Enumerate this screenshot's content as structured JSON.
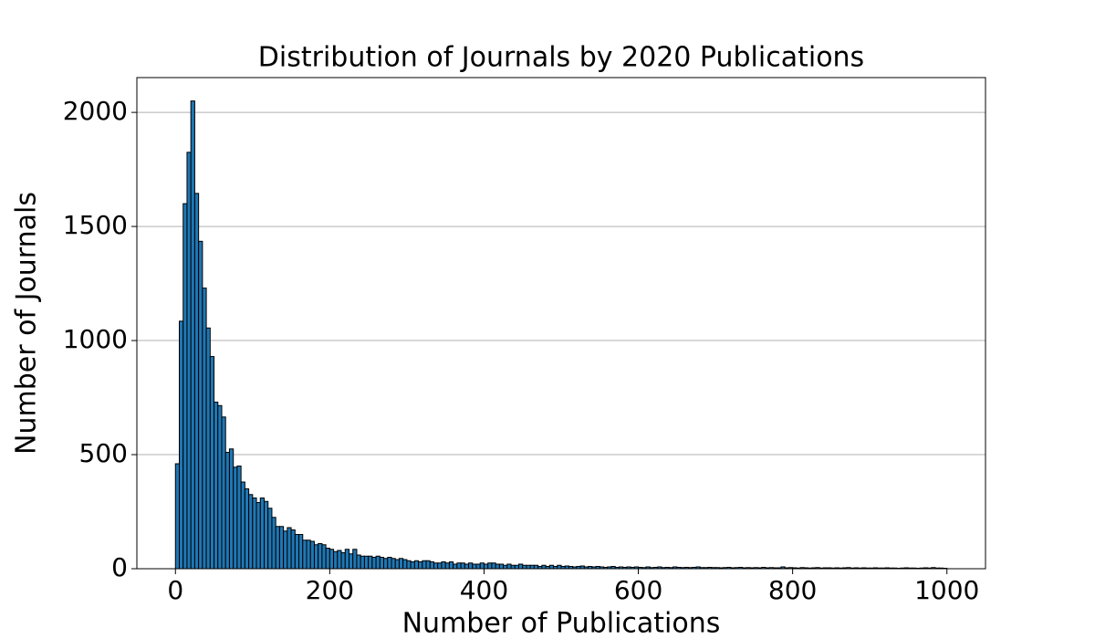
{
  "chart_data": {
    "type": "histogram",
    "title": "Distribution of Journals by 2020 Publications",
    "x_label": "Number of Publications",
    "y_label": "Number of Journals",
    "color": "#1f77b4",
    "edgecolor": "#000000",
    "grid": true,
    "xlim": [
      -50,
      1050
    ],
    "ylim": [
      0,
      2152.5
    ],
    "xticks": [
      0,
      200,
      400,
      600,
      800,
      1000
    ],
    "yticks": [
      0,
      500,
      1000,
      1500,
      2000
    ],
    "bins": [
      0,
      5,
      10,
      15,
      20,
      25,
      30,
      35,
      40,
      45,
      50,
      55,
      60,
      65,
      70,
      75,
      80,
      85,
      90,
      95,
      100,
      105,
      110,
      115,
      120,
      125,
      130,
      135,
      140,
      145,
      150,
      155,
      160,
      165,
      170,
      175,
      180,
      185,
      190,
      195,
      200,
      205,
      210,
      215,
      220,
      225,
      230,
      235,
      240,
      245,
      250,
      255,
      260,
      265,
      270,
      275,
      280,
      285,
      290,
      295,
      300,
      305,
      310,
      315,
      320,
      325,
      330,
      335,
      340,
      345,
      350,
      355,
      360,
      365,
      370,
      375,
      380,
      385,
      390,
      395,
      400,
      405,
      410,
      415,
      420,
      425,
      430,
      435,
      440,
      445,
      450,
      455,
      460,
      465,
      470,
      475,
      480,
      485,
      490,
      495,
      500,
      505,
      510,
      515,
      520,
      525,
      530,
      535,
      540,
      545,
      550,
      555,
      560,
      565,
      570,
      575,
      580,
      585,
      590,
      595,
      600,
      605,
      610,
      615,
      620,
      625,
      630,
      635,
      640,
      645,
      650,
      655,
      660,
      665,
      670,
      675,
      680,
      685,
      690,
      695,
      700,
      705,
      710,
      715,
      720,
      725,
      730,
      735,
      740,
      745,
      750,
      755,
      760,
      765,
      770,
      775,
      780,
      785,
      790,
      795,
      800,
      805,
      810,
      815,
      820,
      825,
      830,
      835,
      840,
      845,
      850,
      855,
      860,
      865,
      870,
      875,
      880,
      885,
      890,
      895,
      900,
      905,
      910,
      915,
      920,
      925,
      930,
      935,
      940,
      945,
      950,
      955,
      960,
      965,
      970,
      975,
      980,
      985,
      990,
      995,
      1000
    ],
    "counts": [
      460,
      1085,
      1600,
      1825,
      2050,
      1645,
      1435,
      1230,
      1055,
      930,
      730,
      715,
      665,
      510,
      525,
      445,
      450,
      380,
      350,
      325,
      310,
      290,
      310,
      295,
      265,
      225,
      185,
      185,
      165,
      180,
      170,
      150,
      150,
      125,
      125,
      120,
      105,
      110,
      105,
      90,
      85,
      75,
      80,
      70,
      85,
      65,
      85,
      60,
      55,
      55,
      55,
      50,
      55,
      50,
      45,
      50,
      45,
      40,
      45,
      40,
      35,
      30,
      35,
      30,
      35,
      35,
      30,
      25,
      25,
      30,
      25,
      30,
      20,
      25,
      25,
      20,
      25,
      20,
      20,
      25,
      20,
      25,
      25,
      20,
      20,
      15,
      20,
      15,
      15,
      20,
      15,
      15,
      15,
      15,
      10,
      15,
      10,
      15,
      10,
      15,
      10,
      12,
      10,
      8,
      10,
      12,
      8,
      10,
      8,
      10,
      8,
      6,
      8,
      10,
      6,
      8,
      6,
      8,
      6,
      8,
      6,
      5,
      8,
      5,
      6,
      8,
      5,
      6,
      5,
      8,
      6,
      5,
      6,
      5,
      6,
      8,
      5,
      5,
      6,
      5,
      5,
      4,
      5,
      6,
      4,
      5,
      6,
      4,
      5,
      4,
      5,
      4,
      6,
      4,
      5,
      4,
      4,
      8,
      4,
      5,
      4,
      3,
      5,
      4,
      3,
      4,
      5,
      3,
      4,
      4,
      3,
      4,
      3,
      4,
      5,
      3,
      4,
      3,
      4,
      3,
      3,
      4,
      3,
      3,
      4,
      3,
      3,
      2,
      3,
      4,
      3,
      3,
      2,
      3,
      4,
      3,
      5,
      3,
      3,
      2
    ]
  }
}
